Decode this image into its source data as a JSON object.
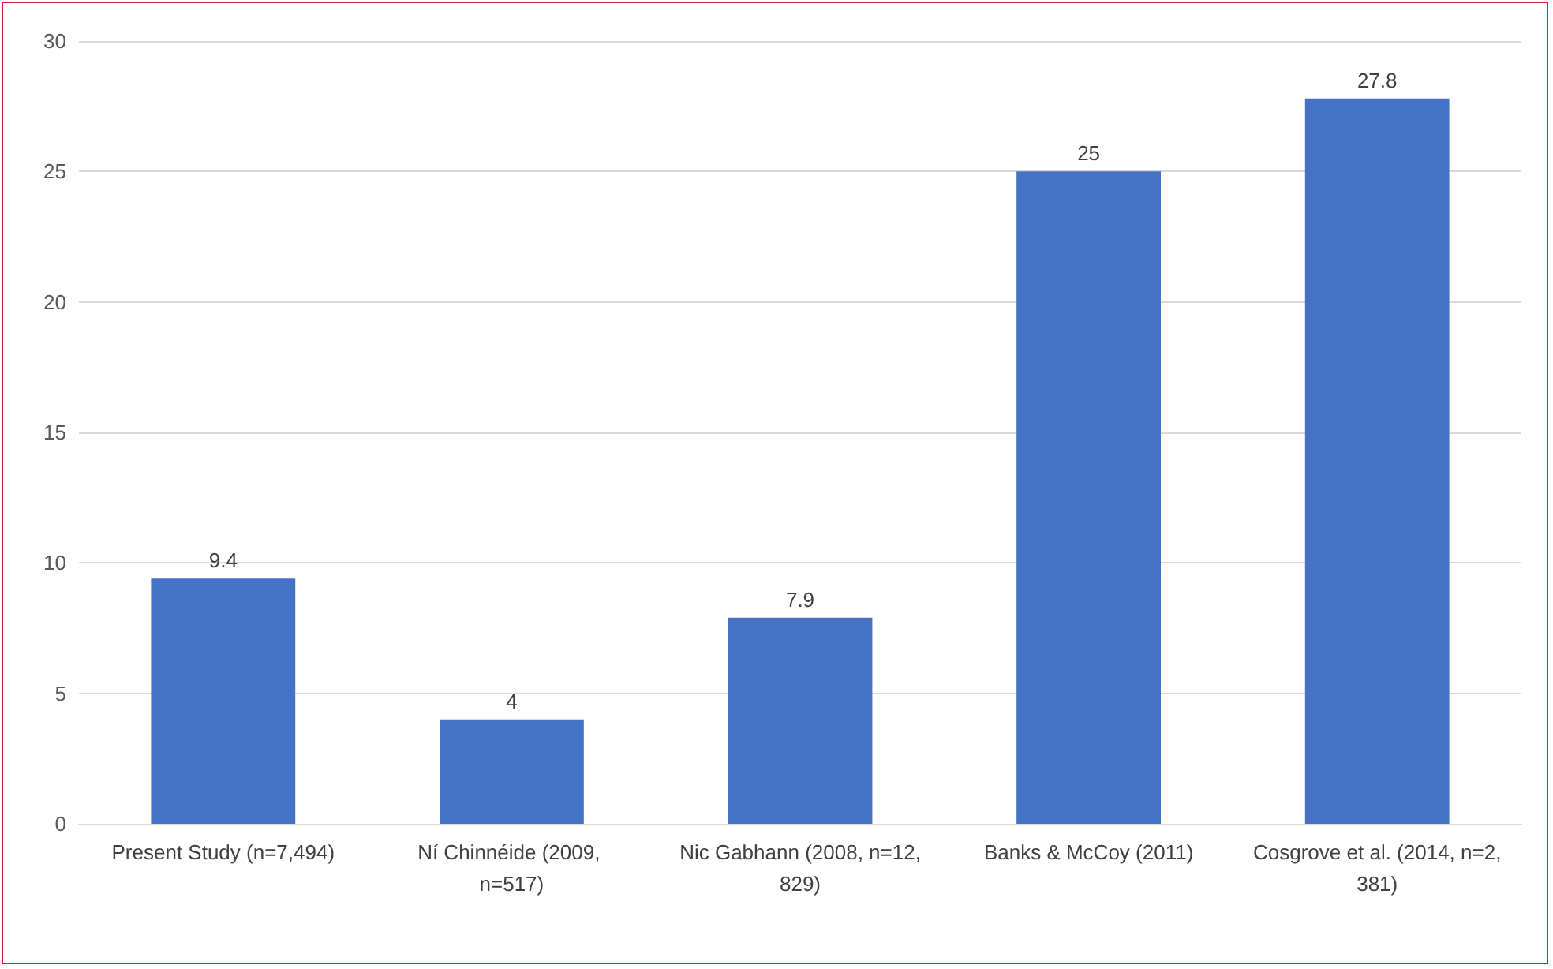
{
  "chart_data": {
    "type": "bar",
    "categories": [
      "Present Study (n=7,494)",
      "Ní Chinnéide (2009, n=517)",
      "Nic Gabhann (2008, n=12,829)",
      "Banks & McCoy (2011)",
      "Cosgrove et al. (2014, n=2,381)"
    ],
    "values": [
      9.4,
      4,
      7.9,
      25,
      27.8
    ],
    "color": "#4472c4",
    "ylim": [
      0,
      30
    ],
    "yticks": [
      0,
      5,
      10,
      15,
      20,
      25,
      30
    ],
    "grid": "y",
    "data_labels": true
  }
}
